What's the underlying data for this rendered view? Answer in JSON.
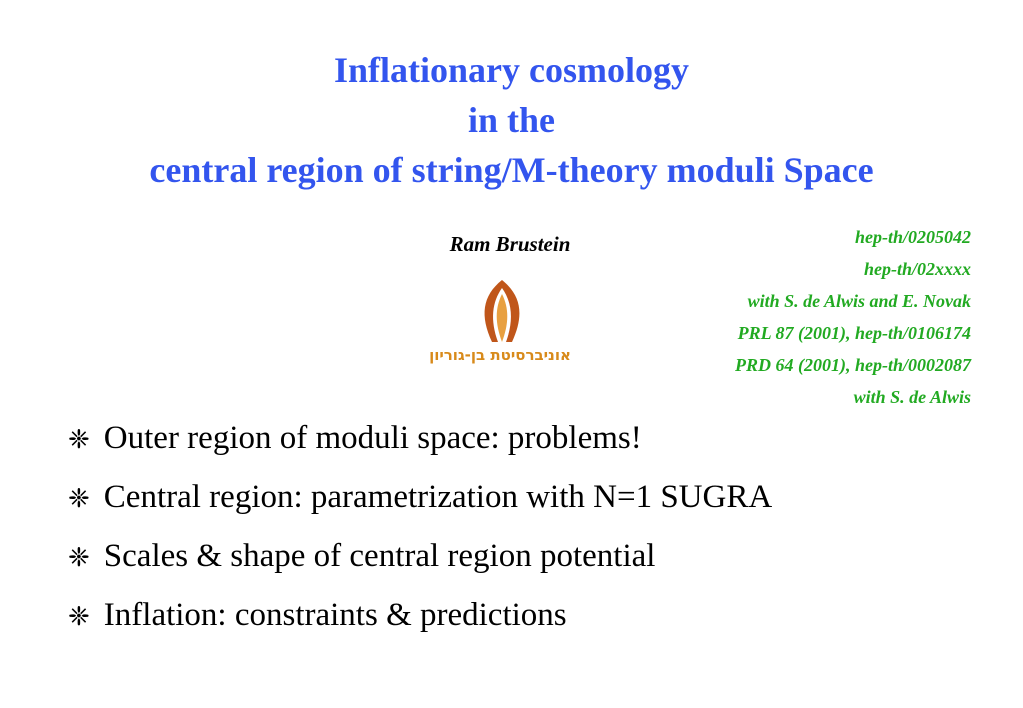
{
  "title": [
    "Inflationary cosmology",
    "in the",
    "central region of string/M-theory moduli Space"
  ],
  "author": "Ram Brustein",
  "university": "אוניברסיטת בן-גוריון",
  "references": [
    "hep-th/0205042",
    "hep-th/02xxxx",
    "with S. de Alwis and E. Novak",
    "PRL 87 (2001), hep-th/0106174",
    "PRD 64 (2001), hep-th/0002087",
    "with S. de Alwis"
  ],
  "bullets": [
    "Outer region of moduli space: problems!",
    "Central region: parametrization with N=1 SUGRA",
    "Scales & shape of central region potential",
    "Inflation: constraints & predictions"
  ]
}
